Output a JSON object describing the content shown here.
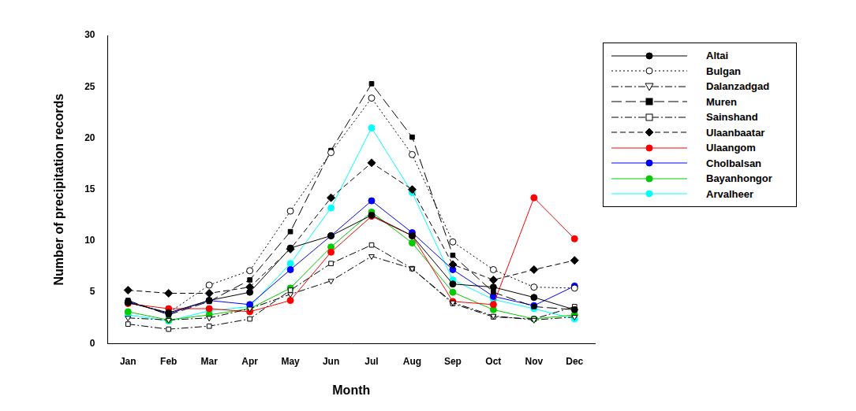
{
  "chart_data": {
    "type": "line",
    "x_label": "Month",
    "y_label": "Number of precipitation records",
    "categories": [
      "Jan",
      "Feb",
      "Mar",
      "Apr",
      "May",
      "Jun",
      "Jul",
      "Aug",
      "Sep",
      "Oct",
      "Nov",
      "Dec"
    ],
    "ylim": [
      0,
      30
    ],
    "yticks": [
      0,
      5,
      10,
      15,
      20,
      25,
      30
    ],
    "grid": false,
    "legend": "right",
    "series": [
      {
        "name": "Altai",
        "color": "#000000",
        "marker": "circle",
        "line_style": "solid",
        "values": [
          4.0,
          3.0,
          4.2,
          5.0,
          9.3,
          10.5,
          12.5,
          10.5,
          5.8,
          5.5,
          4.5,
          3.3
        ]
      },
      {
        "name": "Bulgan",
        "color": "#000000",
        "marker": "circle-open",
        "line_style": "dotted",
        "values": [
          4.0,
          3.0,
          5.7,
          7.1,
          12.9,
          18.6,
          23.9,
          18.4,
          9.9,
          7.2,
          5.5,
          5.4
        ]
      },
      {
        "name": "Dalanzadgad",
        "color": "#000000",
        "marker": "triangle-down-open",
        "line_style": "dashdot",
        "values": [
          2.5,
          2.3,
          2.5,
          3.4,
          4.8,
          6.1,
          8.5,
          7.3,
          4.0,
          2.7,
          2.3,
          2.6
        ]
      },
      {
        "name": "Muren",
        "color": "#000000",
        "marker": "square",
        "line_style": "longdash",
        "values": [
          4.2,
          2.8,
          4.1,
          6.2,
          10.9,
          18.8,
          25.3,
          20.1,
          8.6,
          5.0,
          3.6,
          3.3
        ]
      },
      {
        "name": "Sainshand",
        "color": "#000000",
        "marker": "square-open",
        "line_style": "dashdot",
        "values": [
          1.9,
          1.4,
          1.7,
          2.4,
          5.2,
          7.8,
          9.6,
          7.3,
          3.9,
          2.6,
          2.4,
          3.6
        ]
      },
      {
        "name": "Ulaanbaatar",
        "color": "#000000",
        "marker": "diamond",
        "line_style": "dashed",
        "values": [
          5.2,
          4.9,
          4.9,
          5.5,
          9.2,
          14.2,
          17.6,
          15.0,
          7.7,
          6.2,
          7.2,
          8.1
        ]
      },
      {
        "name": "Ulaangom",
        "color": "#ff0000",
        "marker": "circle",
        "line_style": "solid",
        "values": [
          3.9,
          3.4,
          3.4,
          3.1,
          4.2,
          8.9,
          12.4,
          10.5,
          4.1,
          3.8,
          14.2,
          10.2
        ]
      },
      {
        "name": "Cholbalsan",
        "color": "#0000ff",
        "marker": "circle",
        "line_style": "solid",
        "values": [
          4.1,
          2.9,
          4.2,
          3.8,
          7.2,
          10.5,
          13.9,
          10.8,
          7.2,
          4.6,
          3.7,
          5.6
        ]
      },
      {
        "name": "Bayanhongor",
        "color": "#00cc00",
        "marker": "circle",
        "line_style": "solid",
        "values": [
          3.1,
          2.3,
          2.8,
          3.4,
          5.4,
          9.4,
          12.8,
          9.8,
          5.0,
          3.3,
          2.4,
          2.8
        ]
      },
      {
        "name": "Arvalheer",
        "color": "#00ffff",
        "marker": "circle",
        "line_style": "solid",
        "values": [
          2.8,
          2.2,
          3.2,
          3.6,
          7.8,
          13.2,
          21.0,
          14.7,
          6.2,
          4.3,
          3.4,
          2.4
        ]
      }
    ]
  }
}
